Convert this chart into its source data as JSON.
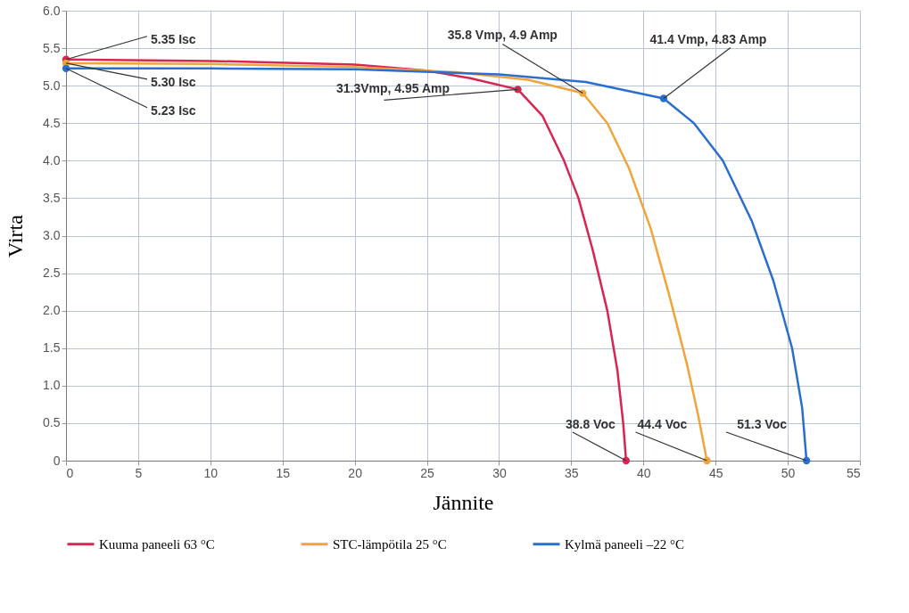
{
  "chart_data": {
    "type": "line",
    "xlabel": "Jännite",
    "ylabel": "Virta",
    "xlim": [
      0,
      55
    ],
    "xticks": [
      0,
      5,
      10,
      15,
      20,
      25,
      30,
      35,
      40,
      45,
      50,
      55
    ],
    "ylim": [
      0,
      6
    ],
    "yticks": [
      {
        "value": 0,
        "label": "0"
      },
      0.5,
      {
        "value": 1,
        "label": "1.0"
      },
      1.5,
      {
        "value": 2,
        "label": "2.0"
      },
      2.5,
      {
        "value": 3,
        "label": "3.0"
      },
      3.5,
      {
        "value": 4,
        "label": "4.0"
      },
      4.5,
      {
        "value": 5,
        "label": "5.0"
      },
      5.5,
      {
        "value": 6,
        "label": "6.0"
      }
    ],
    "grid": true,
    "legend": "bottom",
    "marker": "none",
    "line_style": "solid",
    "series": [
      {
        "name": "Kuuma paneeli 63 °C",
        "color": "#d9254f",
        "x": [
          0,
          10,
          20,
          25,
          28,
          31.3,
          33,
          34.5,
          35.5,
          36.5,
          37.5,
          38.2,
          38.6,
          38.8
        ],
        "values": [
          5.35,
          5.33,
          5.28,
          5.2,
          5.1,
          4.95,
          4.6,
          4.0,
          3.5,
          2.8,
          2.0,
          1.2,
          0.5,
          0
        ]
      },
      {
        "name": "STC-lämpötila 25 °C",
        "color": "#f0a53a",
        "x": [
          0,
          10,
          20,
          27,
          32,
          35.8,
          37.5,
          39,
          40.5,
          41.8,
          43,
          43.8,
          44.4
        ],
        "values": [
          5.3,
          5.29,
          5.25,
          5.18,
          5.08,
          4.9,
          4.5,
          3.9,
          3.1,
          2.2,
          1.3,
          0.6,
          0
        ]
      },
      {
        "name": "Kylmä paneeli –22 °C",
        "color": "#2a6fd0",
        "x": [
          0,
          10,
          20,
          30,
          36,
          41.4,
          43.5,
          45.5,
          47.5,
          49,
          50.3,
          51,
          51.3
        ],
        "values": [
          5.23,
          5.23,
          5.22,
          5.15,
          5.05,
          4.83,
          4.5,
          4.0,
          3.2,
          2.4,
          1.5,
          0.7,
          0
        ]
      },
      {
        "type": "scatter",
        "marker": "circle",
        "color": "#d9254f",
        "x": [
          0,
          31.3,
          38.8
        ],
        "values": [
          5.35,
          4.95,
          0
        ]
      },
      {
        "type": "scatter",
        "marker": "circle",
        "color": "#f0a53a",
        "x": [
          0,
          35.8,
          44.4
        ],
        "values": [
          5.3,
          4.9,
          0
        ]
      },
      {
        "type": "scatter",
        "marker": "circle",
        "color": "#2a6fd0",
        "x": [
          0,
          41.4,
          51.3
        ],
        "values": [
          5.23,
          4.83,
          0
        ]
      }
    ],
    "annotations": [
      {
        "text": "5.35 Isc",
        "x": 0,
        "y": 5.35
      },
      {
        "text": "5.30 Isc",
        "x": 0,
        "y": 5.3
      },
      {
        "text": "5.23 Isc",
        "x": 0,
        "y": 5.23
      },
      {
        "text": "31.3Vmp, 4.95 Amp",
        "x": 31.3,
        "y": 4.95
      },
      {
        "text": "35.8 Vmp, 4.9 Amp",
        "x": 35.8,
        "y": 4.9
      },
      {
        "text": "41.4  Vmp, 4.83 Amp",
        "x": 41.4,
        "y": 4.83
      },
      {
        "text": "38.8 Voc",
        "x": 38.8,
        "y": 0
      },
      {
        "text": "44.4 Voc",
        "x": 44.4,
        "y": 0
      },
      {
        "text": "51.3 Voc",
        "x": 51.3,
        "y": 0
      }
    ]
  }
}
